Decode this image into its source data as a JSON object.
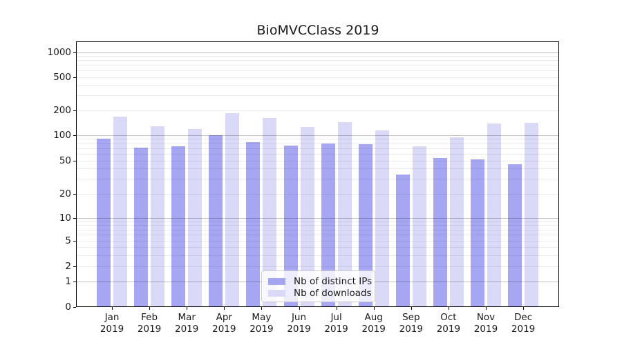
{
  "chart_data": {
    "type": "bar",
    "title": "BioMVCClass 2019",
    "categories": [
      "Jan 2019",
      "Feb 2019",
      "Mar 2019",
      "Apr 2019",
      "May 2019",
      "Jun 2019",
      "Jul 2019",
      "Aug 2019",
      "Sep 2019",
      "Oct 2019",
      "Nov 2019",
      "Dec 2019"
    ],
    "month_labels": [
      "Jan",
      "Feb",
      "Mar",
      "Apr",
      "May",
      "Jun",
      "Jul",
      "Aug",
      "Sep",
      "Oct",
      "Nov",
      "Dec"
    ],
    "year_label": "2019",
    "series": [
      {
        "name": "Nb of distinct IPs",
        "color": "#a6a6f2",
        "values": [
          91,
          71,
          74,
          100,
          83,
          75,
          80,
          78,
          34,
          53,
          51,
          45
        ]
      },
      {
        "name": "Nb of downloads",
        "color": "#dadaf8",
        "values": [
          166,
          128,
          119,
          185,
          160,
          126,
          143,
          114,
          74,
          94,
          139,
          141
        ]
      }
    ],
    "xlabel": "",
    "ylabel": "",
    "yscale": "symlog",
    "yticks": [
      0,
      1,
      2,
      5,
      10,
      20,
      50,
      100,
      200,
      500,
      1000
    ],
    "minor_grid_values": [
      2,
      3,
      4,
      5,
      6,
      7,
      8,
      9,
      20,
      30,
      40,
      50,
      60,
      70,
      80,
      90,
      200,
      300,
      400,
      500,
      600,
      700,
      800,
      900
    ],
    "major_grid_values": [
      1,
      10,
      100,
      1000
    ],
    "ylim": [
      0,
      1350
    ],
    "grid": true,
    "legend_position": "lower center"
  },
  "colors": {
    "bar_ips": "#a6a6f2",
    "bar_downloads": "#dadaf8",
    "grid_minor": "rgba(0,0,0,0.08)",
    "grid_major": "rgba(0,0,0,0.24)",
    "axis": "#000000",
    "text": "#1a1a1a",
    "background": "#ffffff",
    "legend_bg": "rgba(255,255,255,0.8)",
    "legend_border": "#cccccc"
  }
}
